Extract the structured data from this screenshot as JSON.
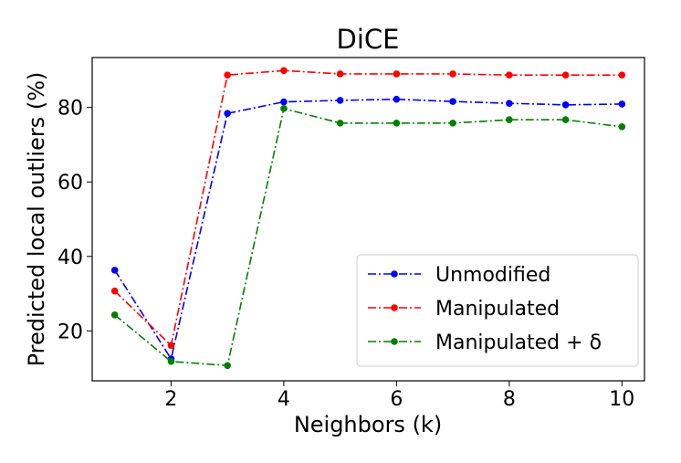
{
  "chart_data": {
    "type": "line",
    "title": "DiCE",
    "xlabel": "Neighbors (k)",
    "ylabel": "Predicted local outliers (%)",
    "x": [
      1,
      2,
      3,
      4,
      5,
      6,
      7,
      8,
      9,
      10
    ],
    "xticks": [
      2,
      4,
      6,
      8,
      10
    ],
    "yticks": [
      20,
      40,
      60,
      80
    ],
    "xlim": [
      0.6,
      10.4
    ],
    "ylim": [
      6.6,
      93.4
    ],
    "grid": false,
    "legend_position": "lower-right",
    "series": [
      {
        "name": "Unmodified",
        "color": "#0000ff",
        "values": [
          36.3,
          12.5,
          78.4,
          81.5,
          81.9,
          82.2,
          81.6,
          81.1,
          80.7,
          80.9
        ]
      },
      {
        "name": "Manipulated",
        "color": "#ff0000",
        "values": [
          30.7,
          16.1,
          88.7,
          89.9,
          89.0,
          89.0,
          89.0,
          88.7,
          88.7,
          88.7
        ]
      },
      {
        "name": "Manipulated + δ",
        "color": "#008000",
        "values": [
          24.3,
          11.8,
          10.7,
          79.7,
          75.8,
          75.8,
          75.8,
          76.7,
          76.7,
          74.8
        ]
      }
    ]
  }
}
